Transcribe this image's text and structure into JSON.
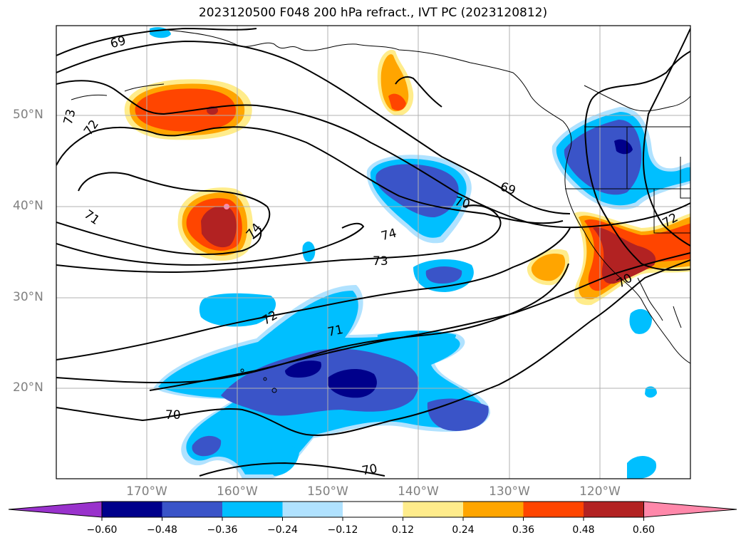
{
  "title": "2023120500 F048 200 hPa refract., IVT PC (2023120812)",
  "lat_labels": [
    "50°N",
    "40°N",
    "30°N",
    "20°N"
  ],
  "lon_labels": [
    "170°W",
    "160°W",
    "150°W",
    "140°W",
    "130°W",
    "120°W"
  ],
  "colorbar": {
    "colors": [
      "#9932cc",
      "#00008b",
      "#3a54c8",
      "#00bfff",
      "#b0e2ff",
      "#ffffff",
      "#ffec8b",
      "#ffa500",
      "#ff4500",
      "#b22222",
      "#ff88aa"
    ],
    "tick_labels": [
      "−0.60",
      "−0.48",
      "−0.36",
      "−0.24",
      "−0.12",
      "0.12",
      "0.24",
      "0.36",
      "0.48",
      "0.60"
    ]
  },
  "contour_labels": [
    "69",
    "73",
    "72",
    "71",
    "74",
    "70",
    "74",
    "73",
    "72",
    "71",
    "70",
    "70",
    "69",
    "70",
    "72"
  ],
  "colors": {
    "grid": "#b0b0b0",
    "contour": "#000000",
    "coast": "#000000",
    "axis_label": "#808080"
  }
}
